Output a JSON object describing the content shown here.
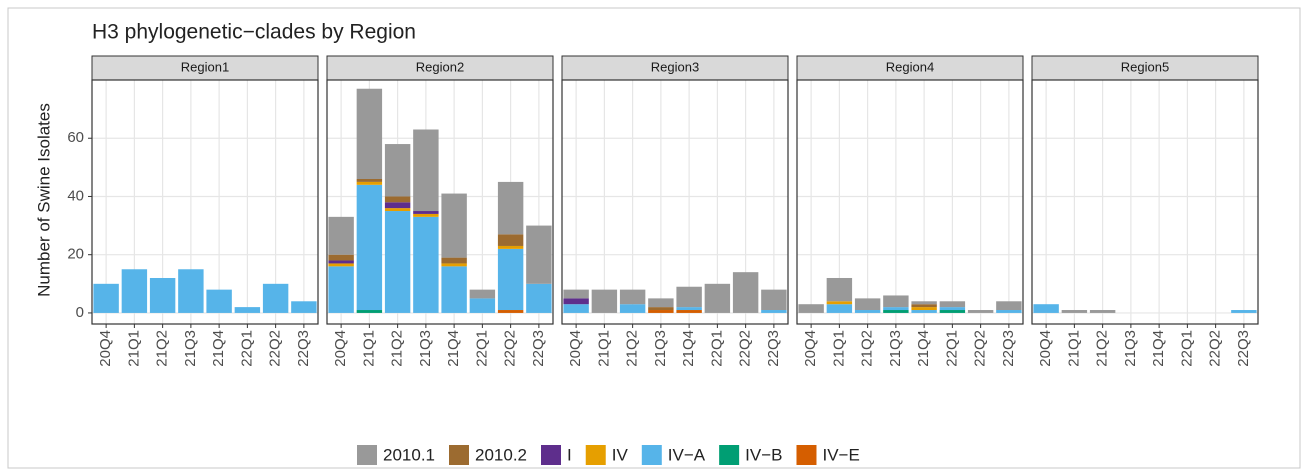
{
  "title": "H3 phylogenetic−clades by Region",
  "y_label": "Number of Swine Isolates",
  "chart_data": [
    {
      "type": "stacked_bar",
      "title": "Region1",
      "categories": [
        "20Q4",
        "21Q1",
        "21Q2",
        "21Q3",
        "21Q4",
        "22Q1",
        "22Q2",
        "22Q3"
      ],
      "ylim": [
        -3.8,
        80
      ],
      "yticks": [
        0,
        20,
        40,
        60
      ],
      "grid": true,
      "series": [
        {
          "name": "2010.1",
          "color": "#999999",
          "values": [
            0,
            0,
            0,
            0,
            0,
            0,
            0,
            0
          ]
        },
        {
          "name": "2010.2",
          "color": "#9c6b30",
          "values": [
            0,
            0,
            0,
            0,
            0,
            0,
            0,
            0
          ]
        },
        {
          "name": "I",
          "color": "#5e2e8c",
          "values": [
            0,
            0,
            0,
            0,
            0,
            0,
            0,
            0
          ]
        },
        {
          "name": "IV",
          "color": "#e69f00",
          "values": [
            0,
            0,
            0,
            0,
            0,
            0,
            0,
            0
          ]
        },
        {
          "name": "IV−A",
          "color": "#56b4e9",
          "values": [
            10,
            15,
            12,
            15,
            8,
            2,
            10,
            4
          ]
        },
        {
          "name": "IV−B",
          "color": "#009e73",
          "values": [
            0,
            0,
            0,
            0,
            0,
            0,
            0,
            0
          ]
        },
        {
          "name": "IV−E",
          "color": "#d55e00",
          "values": [
            0,
            0,
            0,
            0,
            0,
            0,
            0,
            0
          ]
        }
      ]
    },
    {
      "type": "stacked_bar",
      "title": "Region2",
      "categories": [
        "20Q4",
        "21Q1",
        "21Q2",
        "21Q3",
        "21Q4",
        "22Q1",
        "22Q2",
        "22Q3"
      ],
      "ylim": [
        -3.8,
        80
      ],
      "yticks": [
        0,
        20,
        40,
        60
      ],
      "grid": true,
      "series": [
        {
          "name": "2010.1",
          "color": "#999999",
          "values": [
            13,
            31,
            18,
            28,
            22,
            3,
            18,
            20
          ]
        },
        {
          "name": "2010.2",
          "color": "#9c6b30",
          "values": [
            2,
            1,
            2,
            0,
            2,
            0,
            4,
            0
          ]
        },
        {
          "name": "I",
          "color": "#5e2e8c",
          "values": [
            1,
            0,
            2,
            1,
            0,
            0,
            0,
            0
          ]
        },
        {
          "name": "IV",
          "color": "#e69f00",
          "values": [
            1,
            1,
            1,
            1,
            1,
            0,
            1,
            0
          ]
        },
        {
          "name": "IV−A",
          "color": "#56b4e9",
          "values": [
            16,
            43,
            35,
            33,
            16,
            5,
            21,
            10
          ]
        },
        {
          "name": "IV−B",
          "color": "#009e73",
          "values": [
            0,
            1,
            0,
            0,
            0,
            0,
            0,
            0
          ]
        },
        {
          "name": "IV−E",
          "color": "#d55e00",
          "values": [
            0,
            0,
            0,
            0,
            0,
            0,
            1,
            0
          ]
        }
      ]
    },
    {
      "type": "stacked_bar",
      "title": "Region3",
      "categories": [
        "20Q4",
        "21Q1",
        "21Q2",
        "21Q3",
        "21Q4",
        "22Q1",
        "22Q2",
        "22Q3"
      ],
      "ylim": [
        -3.8,
        80
      ],
      "yticks": [
        0,
        20,
        40,
        60
      ],
      "grid": true,
      "series": [
        {
          "name": "2010.1",
          "color": "#999999",
          "values": [
            3,
            8,
            5,
            3,
            7,
            10,
            14,
            7
          ]
        },
        {
          "name": "2010.2",
          "color": "#9c6b30",
          "values": [
            0,
            0,
            0,
            1,
            0,
            0,
            0,
            0
          ]
        },
        {
          "name": "I",
          "color": "#5e2e8c",
          "values": [
            2,
            0,
            0,
            0,
            0,
            0,
            0,
            0
          ]
        },
        {
          "name": "IV",
          "color": "#e69f00",
          "values": [
            0,
            0,
            0,
            0,
            0,
            0,
            0,
            0
          ]
        },
        {
          "name": "IV−A",
          "color": "#56b4e9",
          "values": [
            3,
            0,
            3,
            0,
            1,
            0,
            0,
            1
          ]
        },
        {
          "name": "IV−B",
          "color": "#009e73",
          "values": [
            0,
            0,
            0,
            0,
            0,
            0,
            0,
            0
          ]
        },
        {
          "name": "IV−E",
          "color": "#d55e00",
          "values": [
            0,
            0,
            0,
            1,
            1,
            0,
            0,
            0
          ]
        }
      ]
    },
    {
      "type": "stacked_bar",
      "title": "Region4",
      "categories": [
        "20Q4",
        "21Q1",
        "21Q2",
        "21Q3",
        "21Q4",
        "22Q1",
        "22Q2",
        "22Q3"
      ],
      "ylim": [
        -3.8,
        80
      ],
      "yticks": [
        0,
        20,
        40,
        60
      ],
      "grid": true,
      "series": [
        {
          "name": "2010.1",
          "color": "#999999",
          "values": [
            3,
            8,
            4,
            4,
            1,
            2,
            1,
            3
          ]
        },
        {
          "name": "2010.2",
          "color": "#9c6b30",
          "values": [
            0,
            0,
            0,
            0,
            1,
            0,
            0,
            0
          ]
        },
        {
          "name": "I",
          "color": "#5e2e8c",
          "values": [
            0,
            0,
            0,
            0,
            0,
            0,
            0,
            0
          ]
        },
        {
          "name": "IV",
          "color": "#e69f00",
          "values": [
            0,
            1,
            0,
            0,
            1,
            0,
            0,
            0
          ]
        },
        {
          "name": "IV−A",
          "color": "#56b4e9",
          "values": [
            0,
            3,
            1,
            1,
            1,
            1,
            0,
            1
          ]
        },
        {
          "name": "IV−B",
          "color": "#009e73",
          "values": [
            0,
            0,
            0,
            1,
            0,
            1,
            0,
            0
          ]
        },
        {
          "name": "IV−E",
          "color": "#d55e00",
          "values": [
            0,
            0,
            0,
            0,
            0,
            0,
            0,
            0
          ]
        }
      ]
    },
    {
      "type": "stacked_bar",
      "title": "Region5",
      "categories": [
        "20Q4",
        "21Q1",
        "21Q2",
        "21Q3",
        "21Q4",
        "22Q1",
        "22Q2",
        "22Q3"
      ],
      "ylim": [
        -3.8,
        80
      ],
      "yticks": [
        0,
        20,
        40,
        60
      ],
      "grid": true,
      "series": [
        {
          "name": "2010.1",
          "color": "#999999",
          "values": [
            0,
            1,
            1,
            0,
            0,
            0,
            0,
            0
          ]
        },
        {
          "name": "2010.2",
          "color": "#9c6b30",
          "values": [
            0,
            0,
            0,
            0,
            0,
            0,
            0,
            0
          ]
        },
        {
          "name": "I",
          "color": "#5e2e8c",
          "values": [
            0,
            0,
            0,
            0,
            0,
            0,
            0,
            0
          ]
        },
        {
          "name": "IV",
          "color": "#e69f00",
          "values": [
            0,
            0,
            0,
            0,
            0,
            0,
            0,
            0
          ]
        },
        {
          "name": "IV−A",
          "color": "#56b4e9",
          "values": [
            3,
            0,
            0,
            0,
            0,
            0,
            0,
            1
          ]
        },
        {
          "name": "IV−B",
          "color": "#009e73",
          "values": [
            0,
            0,
            0,
            0,
            0,
            0,
            0,
            0
          ]
        },
        {
          "name": "IV−E",
          "color": "#d55e00",
          "values": [
            0,
            0,
            0,
            0,
            0,
            0,
            0,
            0
          ]
        }
      ]
    }
  ]
}
